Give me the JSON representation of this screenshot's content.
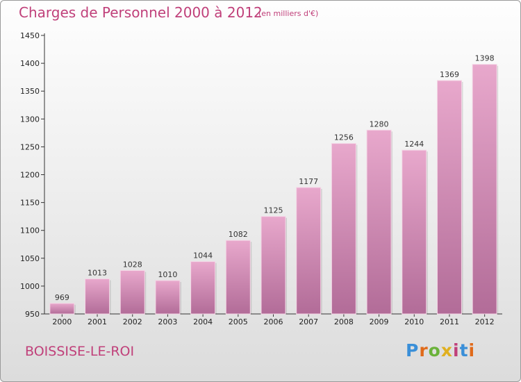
{
  "header": {
    "title": "Charges de Personnel 2000 à 2012",
    "subtitle": "(en milliers d'€)"
  },
  "footer": {
    "place": "BOISSISE-LE-ROI",
    "logo_text": "Proxiti",
    "logo_colors": [
      "#3a8fd8",
      "#e06a1a",
      "#6ab23a",
      "#e0b020",
      "#c0407a",
      "#3a8fd8",
      "#e06a1a"
    ]
  },
  "colors": {
    "bar_top": "#e8a8cc",
    "bar_bottom": "#b26c98",
    "text_accent": "#c0407a"
  },
  "chart_data": {
    "type": "bar",
    "categories": [
      "2000",
      "2001",
      "2002",
      "2003",
      "2004",
      "2005",
      "2006",
      "2007",
      "2008",
      "2009",
      "2010",
      "2011",
      "2012"
    ],
    "values": [
      969,
      1013,
      1028,
      1010,
      1044,
      1082,
      1125,
      1177,
      1256,
      1280,
      1244,
      1369,
      1398
    ],
    "ylim": [
      950,
      1450
    ],
    "yticks": [
      950,
      1000,
      1050,
      1100,
      1150,
      1200,
      1250,
      1300,
      1350,
      1400,
      1450
    ],
    "grid": false,
    "legend": "none"
  }
}
